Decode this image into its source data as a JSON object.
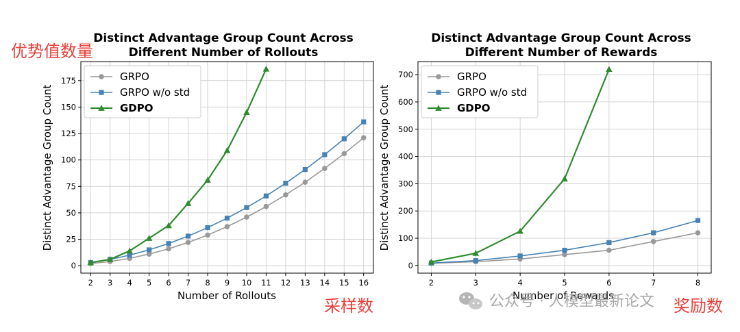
{
  "annotations": {
    "left_top": "优势值数量",
    "left_bottom": "采样数",
    "right_bottom": "奖励数"
  },
  "watermark": {
    "icon": "wechat-icon",
    "text": "公众号 · 人模型最新论文"
  },
  "colors": {
    "GRPO": "#999999",
    "GRPO w/o std": "#4682b4",
    "GDPO": "#2e8b2e"
  },
  "chart_data": [
    {
      "type": "line",
      "title_line1": "Distinct Advantage Group Count Across",
      "title_line2": "Different Number of Rollouts",
      "xlabel": "Number of Rollouts",
      "ylabel": "Distinct Advantage Group Count",
      "xlim": [
        1.5,
        16.5
      ],
      "ylim": [
        -7,
        193
      ],
      "xticks": [
        2,
        3,
        4,
        5,
        6,
        7,
        8,
        9,
        10,
        11,
        12,
        13,
        14,
        15,
        16
      ],
      "yticks": [
        0,
        25,
        50,
        75,
        100,
        125,
        150,
        175
      ],
      "grid": true,
      "legend": "upper-left",
      "series": [
        {
          "name": "GRPO",
          "marker": "circle",
          "x": [
            2,
            3,
            4,
            5,
            6,
            7,
            8,
            9,
            10,
            11,
            12,
            13,
            14,
            15,
            16
          ],
          "y": [
            2,
            4,
            7,
            11,
            16,
            22,
            29,
            37,
            46,
            56,
            67,
            79,
            92,
            106,
            121
          ]
        },
        {
          "name": "GRPO w/o std",
          "marker": "square",
          "x": [
            2,
            3,
            4,
            5,
            6,
            7,
            8,
            9,
            10,
            11,
            12,
            13,
            14,
            15,
            16
          ],
          "y": [
            3,
            6,
            10,
            15,
            21,
            28,
            36,
            45,
            55,
            66,
            78,
            91,
            105,
            120,
            136
          ]
        },
        {
          "name": "GDPO",
          "marker": "triangle",
          "x": [
            2,
            3,
            4,
            5,
            6,
            7,
            8,
            9,
            10,
            11
          ],
          "y": [
            3,
            6,
            14,
            26,
            38,
            59,
            81,
            109,
            145,
            186
          ]
        }
      ]
    },
    {
      "type": "line",
      "title_line1": "Distinct Advantage Group Count Across",
      "title_line2": "Different Number of Rewards",
      "xlabel": "Number of Rewards",
      "ylabel": "Distinct Advantage Group Count",
      "xlim": [
        1.7,
        8.3
      ],
      "ylim": [
        -28,
        748
      ],
      "xticks": [
        2,
        3,
        4,
        5,
        6,
        7,
        8
      ],
      "yticks": [
        0,
        100,
        200,
        300,
        400,
        500,
        600,
        700
      ],
      "grid": true,
      "legend": "upper-left",
      "series": [
        {
          "name": "GRPO",
          "marker": "circle",
          "x": [
            2,
            3,
            4,
            5,
            6,
            7,
            8
          ],
          "y": [
            8,
            14,
            24,
            40,
            56,
            88,
            120
          ]
        },
        {
          "name": "GRPO w/o std",
          "marker": "square",
          "x": [
            2,
            3,
            4,
            5,
            6,
            7,
            8
          ],
          "y": [
            9,
            18,
            35,
            56,
            84,
            120,
            165
          ]
        },
        {
          "name": "GDPO",
          "marker": "triangle",
          "x": [
            2,
            3,
            4,
            5,
            6
          ],
          "y": [
            13,
            45,
            126,
            318,
            720
          ]
        }
      ]
    }
  ]
}
